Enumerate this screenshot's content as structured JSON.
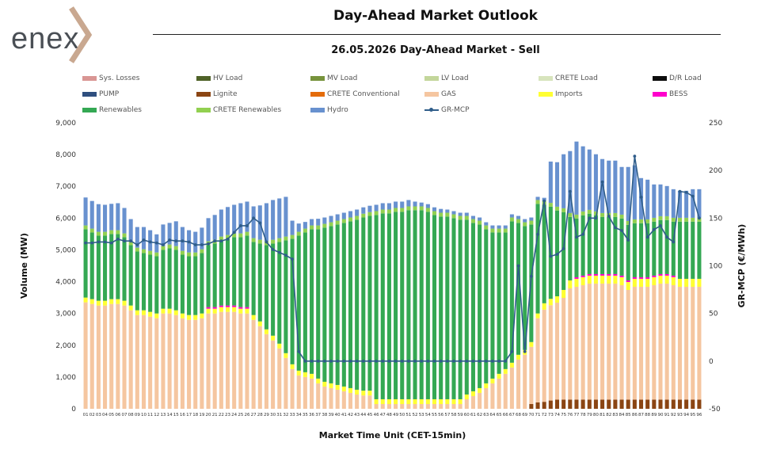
{
  "logo_text": "enex",
  "title": "Day-Ahead Market Outlook",
  "subtitle": "26.05.2026  Day-Ahead Market - Sell",
  "chart_data": {
    "type": "bar",
    "stacked": true,
    "xlabel": "Market Time Unit (CET-15min)",
    "ylabel": "Volume (MW)",
    "y2label": "GR-MCP (€/MWh)",
    "ylim": [
      0,
      9000
    ],
    "y2lim": [
      -50,
      250
    ],
    "yticks": [
      "0",
      "1,000",
      "2,000",
      "3,000",
      "4,000",
      "5,000",
      "6,000",
      "7,000",
      "8,000",
      "9,000"
    ],
    "y2ticks": [
      "-50",
      "0",
      "50",
      "100",
      "150",
      "200",
      "250"
    ],
    "categories": [
      "01",
      "02",
      "03",
      "04",
      "05",
      "06",
      "07",
      "08",
      "09",
      "10",
      "11",
      "12",
      "13",
      "14",
      "15",
      "16",
      "17",
      "18",
      "19",
      "20",
      "21",
      "22",
      "23",
      "24",
      "25",
      "26",
      "27",
      "28",
      "29",
      "30",
      "31",
      "32",
      "33",
      "34",
      "35",
      "36",
      "37",
      "38",
      "39",
      "40",
      "41",
      "42",
      "43",
      "44",
      "45",
      "46",
      "47",
      "48",
      "49",
      "50",
      "51",
      "52",
      "53",
      "54",
      "55",
      "56",
      "57",
      "58",
      "59",
      "60",
      "61",
      "62",
      "63",
      "64",
      "65",
      "66",
      "67",
      "68",
      "69",
      "70",
      "71",
      "72",
      "73",
      "74",
      "75",
      "76",
      "77",
      "78",
      "79",
      "80",
      "81",
      "82",
      "83",
      "84",
      "85",
      "86",
      "87",
      "88",
      "89",
      "90",
      "91",
      "92",
      "93",
      "94",
      "95",
      "96"
    ],
    "legend": [
      {
        "name": "Sys. Losses",
        "color": "#d99694"
      },
      {
        "name": "HV Load",
        "color": "#4f6228"
      },
      {
        "name": "MV Load",
        "color": "#77933c"
      },
      {
        "name": "LV Load",
        "color": "#c3d69b"
      },
      {
        "name": "CRETE Load",
        "color": "#d7e4bd"
      },
      {
        "name": "D/R Load",
        "color": "#0d0d0d"
      },
      {
        "name": "PUMP",
        "color": "#2f4f7f"
      },
      {
        "name": "Lignite",
        "color": "#8b4513"
      },
      {
        "name": "CRETE Conventional",
        "color": "#e46c0a"
      },
      {
        "name": "GAS",
        "color": "#f5c6a0"
      },
      {
        "name": "Imports",
        "color": "#ffff33"
      },
      {
        "name": "BESS",
        "color": "#ff00cc"
      },
      {
        "name": "Renewables",
        "color": "#34a853"
      },
      {
        "name": "CRETE Renewables",
        "color": "#92d050"
      },
      {
        "name": "Hydro",
        "color": "#6891cf"
      },
      {
        "name": "GR-MCP",
        "color": "#2f5d8a"
      }
    ],
    "series": [
      {
        "name": "Lignite",
        "color": "#8b4513",
        "values": [
          0,
          0,
          0,
          0,
          0,
          0,
          0,
          0,
          0,
          0,
          0,
          0,
          0,
          0,
          0,
          0,
          0,
          0,
          0,
          0,
          0,
          0,
          0,
          0,
          0,
          0,
          0,
          0,
          0,
          0,
          0,
          0,
          0,
          0,
          0,
          0,
          0,
          0,
          0,
          0,
          0,
          0,
          0,
          0,
          0,
          0,
          0,
          0,
          0,
          0,
          0,
          0,
          0,
          0,
          0,
          0,
          0,
          0,
          0,
          0,
          0,
          0,
          0,
          0,
          0,
          0,
          0,
          0,
          0,
          150,
          200,
          220,
          260,
          290,
          290,
          290,
          290,
          290,
          290,
          290,
          290,
          290,
          290,
          290,
          290,
          290,
          290,
          290,
          290,
          290,
          290,
          290,
          290,
          290,
          290,
          290
        ]
      },
      {
        "name": "GAS",
        "color": "#f5c6a0",
        "values": [
          3350,
          3300,
          3250,
          3250,
          3300,
          3300,
          3250,
          3100,
          2950,
          2950,
          2900,
          2850,
          3000,
          3000,
          2950,
          2850,
          2800,
          2800,
          2850,
          3000,
          3000,
          3050,
          3050,
          3050,
          3000,
          3000,
          2800,
          2600,
          2350,
          2150,
          1900,
          1600,
          1250,
          1050,
          1000,
          950,
          800,
          700,
          650,
          600,
          550,
          500,
          450,
          420,
          420,
          150,
          150,
          150,
          150,
          150,
          150,
          150,
          150,
          150,
          150,
          150,
          150,
          150,
          150,
          300,
          400,
          500,
          650,
          800,
          950,
          1100,
          1300,
          1550,
          1700,
          1800,
          2650,
          2900,
          3000,
          3050,
          3200,
          3500,
          3550,
          3600,
          3650,
          3650,
          3650,
          3650,
          3650,
          3600,
          3450,
          3550,
          3550,
          3550,
          3600,
          3650,
          3650,
          3600,
          3550,
          3550,
          3550,
          3550
        ]
      },
      {
        "name": "Imports",
        "color": "#ffff33",
        "values": [
          150,
          150,
          150,
          150,
          150,
          150,
          150,
          150,
          150,
          150,
          150,
          150,
          150,
          150,
          150,
          150,
          150,
          150,
          150,
          150,
          150,
          150,
          150,
          150,
          150,
          150,
          150,
          150,
          150,
          150,
          150,
          150,
          150,
          150,
          150,
          150,
          150,
          150,
          150,
          150,
          150,
          150,
          150,
          150,
          150,
          150,
          150,
          150,
          150,
          150,
          150,
          150,
          150,
          150,
          150,
          150,
          150,
          150,
          150,
          150,
          150,
          150,
          150,
          150,
          150,
          150,
          150,
          150,
          150,
          150,
          150,
          200,
          200,
          200,
          250,
          250,
          250,
          250,
          250,
          250,
          250,
          250,
          250,
          250,
          250,
          250,
          250,
          250,
          250,
          250,
          250,
          250,
          250,
          250,
          250,
          250
        ]
      },
      {
        "name": "BESS",
        "color": "#ff00cc",
        "values": [
          0,
          0,
          0,
          0,
          0,
          0,
          0,
          0,
          0,
          0,
          0,
          0,
          0,
          0,
          0,
          0,
          0,
          0,
          0,
          50,
          50,
          50,
          50,
          50,
          50,
          50,
          0,
          0,
          0,
          0,
          0,
          0,
          0,
          0,
          0,
          0,
          0,
          0,
          0,
          0,
          0,
          0,
          0,
          0,
          0,
          0,
          0,
          0,
          0,
          0,
          0,
          0,
          0,
          0,
          0,
          0,
          0,
          0,
          0,
          0,
          0,
          0,
          0,
          0,
          0,
          0,
          0,
          0,
          0,
          0,
          0,
          0,
          0,
          0,
          0,
          0,
          50,
          50,
          50,
          50,
          50,
          50,
          50,
          50,
          50,
          50,
          50,
          50,
          50,
          50,
          50,
          50,
          0,
          0,
          0,
          0
        ]
      },
      {
        "name": "Renewables",
        "color": "#34a853",
        "values": [
          2150,
          2100,
          2050,
          2050,
          2050,
          2050,
          2000,
          1900,
          1850,
          1800,
          1800,
          1800,
          1850,
          1900,
          1900,
          1850,
          1850,
          1850,
          1900,
          1950,
          2000,
          2050,
          2100,
          2150,
          2200,
          2250,
          2300,
          2450,
          2650,
          2900,
          3200,
          3550,
          3950,
          4250,
          4400,
          4550,
          4700,
          4850,
          4950,
          5050,
          5150,
          5250,
          5350,
          5450,
          5500,
          5800,
          5850,
          5850,
          5900,
          5900,
          5950,
          5950,
          5950,
          5900,
          5800,
          5750,
          5750,
          5700,
          5650,
          5500,
          5300,
          5150,
          4850,
          4600,
          4450,
          4300,
          4450,
          4150,
          3900,
          3700,
          3450,
          3100,
          2900,
          2700,
          2450,
          2000,
          1850,
          1900,
          1900,
          1850,
          1800,
          1800,
          1800,
          1800,
          1750,
          1700,
          1700,
          1700,
          1700,
          1700,
          1700,
          1700,
          1800,
          1800,
          1800,
          1800
        ]
      },
      {
        "name": "CRETE Renewables",
        "color": "#92d050",
        "values": [
          120,
          120,
          120,
          120,
          120,
          120,
          120,
          120,
          120,
          120,
          120,
          120,
          120,
          120,
          120,
          120,
          120,
          120,
          120,
          120,
          120,
          120,
          120,
          120,
          120,
          120,
          120,
          120,
          120,
          120,
          120,
          120,
          120,
          120,
          120,
          120,
          120,
          120,
          120,
          120,
          120,
          120,
          120,
          120,
          120,
          120,
          120,
          120,
          120,
          120,
          120,
          120,
          120,
          120,
          120,
          120,
          120,
          120,
          120,
          120,
          120,
          120,
          120,
          120,
          120,
          120,
          120,
          120,
          120,
          120,
          120,
          120,
          120,
          120,
          120,
          120,
          120,
          120,
          120,
          120,
          120,
          120,
          120,
          120,
          120,
          120,
          120,
          120,
          120,
          120,
          120,
          120,
          120,
          120,
          120,
          120
        ]
      },
      {
        "name": "Hydro",
        "color": "#6891cf",
        "values": [
          880,
          870,
          870,
          850,
          830,
          850,
          800,
          700,
          650,
          700,
          650,
          570,
          680,
          680,
          780,
          750,
          700,
          650,
          680,
          730,
          780,
          850,
          880,
          900,
          950,
          950,
          1000,
          1080,
          1200,
          1250,
          1250,
          1250,
          450,
          260,
          210,
          200,
          210,
          200,
          200,
          200,
          200,
          200,
          200,
          200,
          200,
          200,
          200,
          200,
          200,
          200,
          200,
          150,
          120,
          120,
          120,
          120,
          100,
          100,
          100,
          100,
          100,
          100,
          100,
          100,
          100,
          100,
          100,
          100,
          100,
          100,
          100,
          100,
          1300,
          1400,
          1700,
          1950,
          2300,
          2050,
          1900,
          1800,
          1700,
          1650,
          1650,
          1500,
          1700,
          1700,
          1300,
          1250,
          1050,
          1000,
          950,
          900,
          850,
          850,
          900,
          900
        ]
      },
      {
        "name": "GR-MCP",
        "color": "#2f5d8a",
        "type": "line",
        "axis": "right",
        "values": [
          124,
          124,
          125,
          125,
          124,
          128,
          126,
          126,
          122,
          127,
          125,
          124,
          122,
          127,
          126,
          126,
          125,
          122,
          122,
          123,
          126,
          126,
          128,
          135,
          142,
          142,
          150,
          145,
          125,
          117,
          114,
          111,
          107,
          10,
          0,
          0,
          0,
          0,
          0,
          0,
          0,
          0,
          0,
          0,
          0,
          0,
          0,
          0,
          0,
          0,
          0,
          0,
          0,
          0,
          0,
          0,
          0,
          0,
          0,
          0,
          0,
          0,
          0,
          0,
          0,
          0,
          10,
          100,
          10,
          89,
          133,
          168,
          110,
          112,
          118,
          178,
          130,
          133,
          150,
          150,
          188,
          152,
          140,
          137,
          127,
          215,
          172,
          130,
          138,
          142,
          130,
          125,
          178,
          177,
          173,
          150
        ]
      }
    ]
  }
}
